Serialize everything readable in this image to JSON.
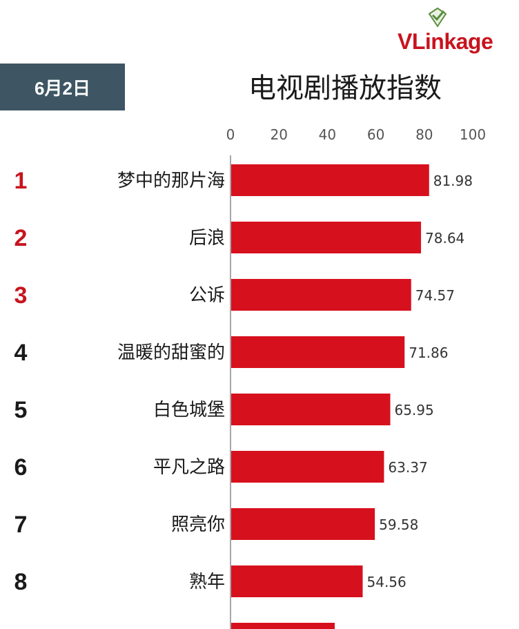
{
  "header": {
    "date": "6月2日",
    "title": "电视剧播放指数",
    "logo_text_v": "V",
    "logo_text_rest": "Linkage",
    "logo_icon": "diamond-check-icon"
  },
  "colors": {
    "bar": "#d7101e",
    "rank_top": "#c8141e",
    "rank_other": "#1a1a1a",
    "date_box": "#3e5663"
  },
  "chart_data": {
    "type": "bar",
    "orientation": "horizontal",
    "title": "电视剧播放指数",
    "xlim": [
      0,
      100
    ],
    "x_ticks": [
      "0",
      "20",
      "40",
      "60",
      "80",
      "100"
    ],
    "ranks": [
      "1",
      "2",
      "3",
      "4",
      "5",
      "6",
      "7",
      "8"
    ],
    "categories": [
      "梦中的那片海",
      "后浪",
      "公诉",
      "温暖的甜蜜的",
      "白色城堡",
      "平凡之路",
      "照亮你",
      "熟年"
    ],
    "values": [
      81.98,
      78.64,
      74.57,
      71.86,
      65.95,
      63.37,
      59.58,
      54.56
    ],
    "value_labels": [
      "81.98",
      "78.64",
      "74.57",
      "71.86",
      "65.95",
      "63.37",
      "59.58",
      "54.56"
    ],
    "grid": false,
    "legend": "none"
  }
}
